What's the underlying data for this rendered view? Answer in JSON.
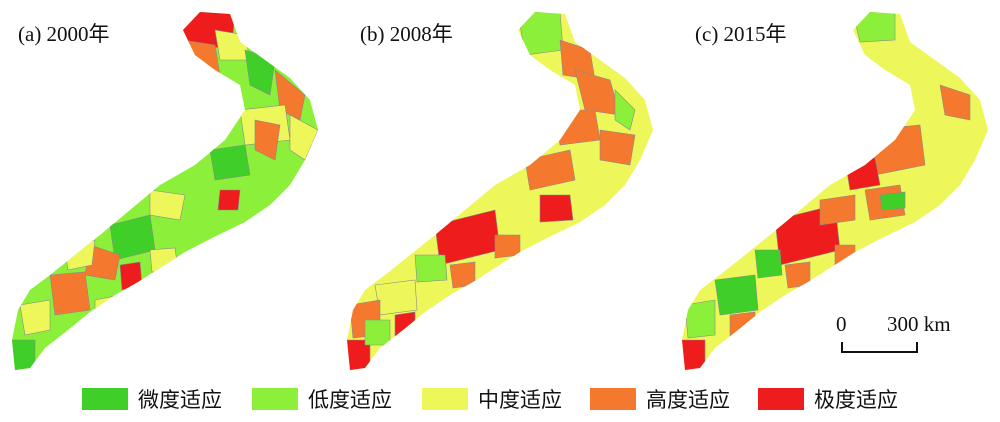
{
  "panels": [
    {
      "label": "(a) 2000年"
    },
    {
      "label": "(b) 2008年"
    },
    {
      "label": "(c) 2015年"
    }
  ],
  "legend": [
    {
      "label": "微度适应",
      "color": "#3fcf28"
    },
    {
      "label": "低度适应",
      "color": "#8cf03a"
    },
    {
      "label": "中度适应",
      "color": "#eef75a"
    },
    {
      "label": "高度适应",
      "color": "#f4792f"
    },
    {
      "label": "极度适应",
      "color": "#ee1c1c"
    }
  ],
  "scale": {
    "min_label": "0",
    "max_label": "300 km"
  }
}
